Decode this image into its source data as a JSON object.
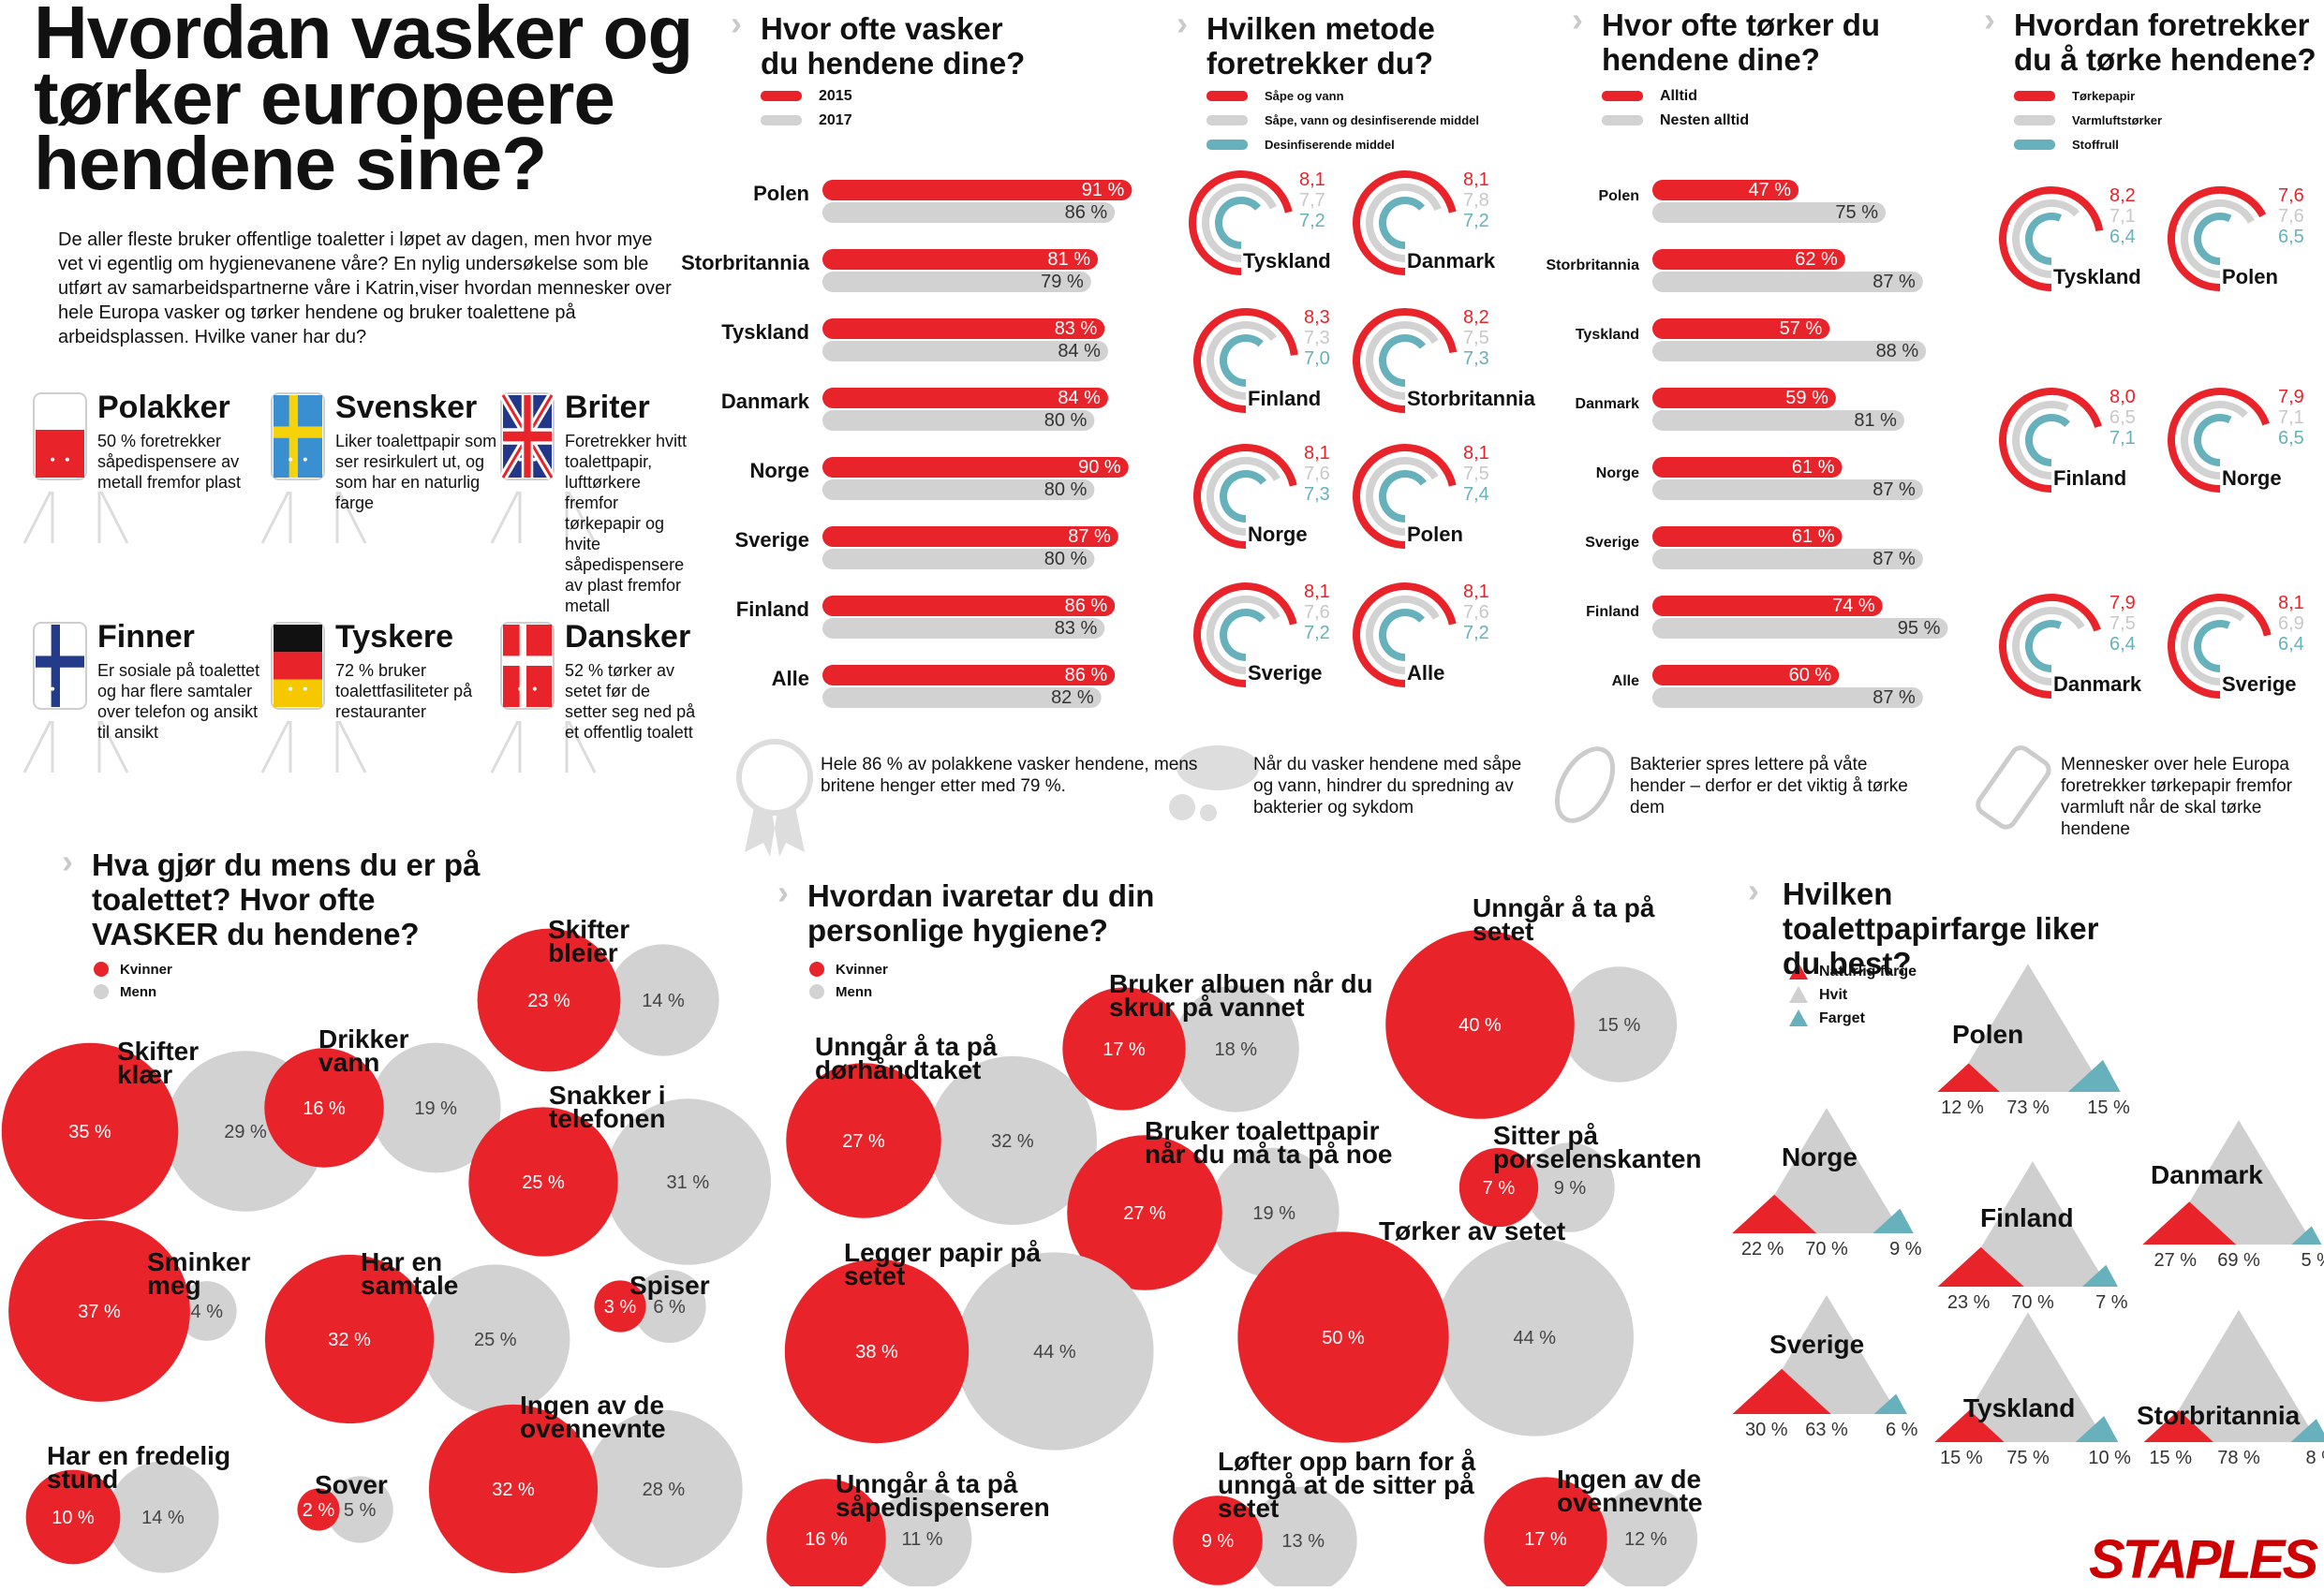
{
  "header": {
    "title": "Hvordan vasker og tørker europeere hendene sine?",
    "intro": "De aller fleste bruker offentlige toaletter i løpet av dagen, men hvor mye vet vi egentlig om hygienevanene våre? En nylig undersøkelse som ble utført av samarbeidspartnerne våre i Katrin,viser hvordan mennesker over hele Europa vasker og tørker hendene og bruker toalettene på arbeidsplassen. Hvilke vaner har du?"
  },
  "nationalities": [
    {
      "name": "Polakker",
      "desc": "50 % foretrekker såpedispensere av metall fremfor plast",
      "flag": "poland"
    },
    {
      "name": "Svensker",
      "desc": "Liker toalettpapir som ser resirkulert ut, og som har en naturlig farge",
      "flag": "sweden"
    },
    {
      "name": "Briter",
      "desc": "Foretrekker hvitt toalettpapir, lufttørkere fremfor tørkepapir og hvite såpedispensere av plast fremfor metall",
      "flag": "uk"
    },
    {
      "name": "Finner",
      "desc": "Er sosiale på toalettet og har flere samtaler over telefon og ansikt til ansikt",
      "flag": "finland"
    },
    {
      "name": "Tyskere",
      "desc": "72 % bruker toalettfasiliteter på restauranter",
      "flag": "germany"
    },
    {
      "name": "Dansker",
      "desc": "52 % tørker av setet før de setter seg ned på et offentlig toalett",
      "flag": "denmark"
    }
  ],
  "colors": {
    "red": "#e8232a",
    "grey": "#d2d2d2",
    "teal": "#67b1bd",
    "light_grey_text": "#c8c8c8"
  },
  "statements": [
    "Hele 86 % av polakkene vasker hendene, mens britene henger etter med 79 %.",
    "Når du vasker hendene med såpe og vann, hindrer du spredning av bakterier og sykdom",
    "Bakterier spres lettere på våte hender – derfor er det viktig å tørke dem",
    "Mennesker over hele Europa foretrekker tørkepapir fremfor varmluft når de skal tørke hendene"
  ],
  "brand": "STAPLES",
  "chart_data": [
    {
      "type": "bar",
      "title": "Hvor ofte vasker du hendene dine?",
      "categories": [
        "Polen",
        "Storbritannia",
        "Tyskland",
        "Danmark",
        "Norge",
        "Sverige",
        "Finland",
        "Alle"
      ],
      "series": [
        {
          "name": "2015",
          "values": [
            91,
            81,
            83,
            84,
            90,
            87,
            86,
            86
          ]
        },
        {
          "name": "2017",
          "values": [
            86,
            79,
            84,
            80,
            80,
            80,
            83,
            82
          ]
        }
      ],
      "unit": "%"
    },
    {
      "type": "radial",
      "title": "Hvilken metode foretrekker du?",
      "legend": [
        "Såpe og vann",
        "Såpe, vann og desinfiserende middel",
        "Desinfiserende middel"
      ],
      "countries": [
        {
          "name": "Tyskland",
          "values": [
            "8,1",
            "7,7",
            "7,2"
          ]
        },
        {
          "name": "Danmark",
          "values": [
            "8,1",
            "7,8",
            "7,2"
          ]
        },
        {
          "name": "Finland",
          "values": [
            "8,3",
            "7,3",
            "7,0"
          ]
        },
        {
          "name": "Storbritannia",
          "values": [
            "8,2",
            "7,5",
            "7,3"
          ]
        },
        {
          "name": "Norge",
          "values": [
            "8,1",
            "7,6",
            "7,3"
          ]
        },
        {
          "name": "Polen",
          "values": [
            "8,1",
            "7,5",
            "7,4"
          ]
        },
        {
          "name": "Sverige",
          "values": [
            "8,1",
            "7,6",
            "7,2"
          ]
        },
        {
          "name": "Alle",
          "values": [
            "8,1",
            "7,6",
            "7,2"
          ]
        }
      ]
    },
    {
      "type": "bar",
      "title": "Hvor ofte tørker du hendene dine?",
      "categories": [
        "Polen",
        "Storbritannia",
        "Tyskland",
        "Danmark",
        "Norge",
        "Sverige",
        "Finland",
        "Alle"
      ],
      "series": [
        {
          "name": "Alltid",
          "values": [
            47,
            62,
            57,
            59,
            61,
            61,
            74,
            60
          ]
        },
        {
          "name": "Nesten alltid",
          "values": [
            75,
            87,
            88,
            81,
            87,
            87,
            95,
            87
          ]
        }
      ],
      "unit": "%"
    },
    {
      "type": "radial",
      "title": "Hvordan foretrekker du å tørke hendene?",
      "legend": [
        "Tørkepapir",
        "Varmluftstørker",
        "Stoffrull"
      ],
      "countries": [
        {
          "name": "Tyskland",
          "values": [
            "8,2",
            "7,1",
            "6,4"
          ]
        },
        {
          "name": "Polen",
          "values": [
            "7,6",
            "7,6",
            "6,5"
          ]
        },
        {
          "name": "Finland",
          "values": [
            "8,0",
            "6,5",
            "7,1"
          ]
        },
        {
          "name": "Norge",
          "values": [
            "7,9",
            "7,1",
            "6,5"
          ]
        },
        {
          "name": "Danmark",
          "values": [
            "7,9",
            "7,5",
            "6,4"
          ]
        },
        {
          "name": "Sverige",
          "values": [
            "8,1",
            "6,9",
            "6,4"
          ]
        }
      ]
    },
    {
      "type": "bubble",
      "title": "Hva gjør du mens du er på toalettet? Hvor ofte VASKER du hendene?",
      "legend": [
        "Kvinner",
        "Menn"
      ],
      "items": [
        {
          "label": "Skifter klær",
          "women": 35,
          "men": 29
        },
        {
          "label": "Drikker vann",
          "women": 16,
          "men": 19
        },
        {
          "label": "Skifter bleier",
          "women": 23,
          "men": 14
        },
        {
          "label": "Snakker i telefonen",
          "women": 25,
          "men": 31
        },
        {
          "label": "Sminker meg",
          "women": 37,
          "men": 4
        },
        {
          "label": "Har en samtale",
          "women": 32,
          "men": 25
        },
        {
          "label": "Spiser",
          "women": 3,
          "men": 6
        },
        {
          "label": "Har en fredelig stund",
          "women": 10,
          "men": 14
        },
        {
          "label": "Sover",
          "women": 2,
          "men": 5
        },
        {
          "label": "Ingen av de ovennevnte",
          "women": 32,
          "men": 28
        }
      ]
    },
    {
      "type": "bubble",
      "title": "Hvordan ivaretar du din personlige hygiene?",
      "legend": [
        "Kvinner",
        "Menn"
      ],
      "items": [
        {
          "label": "Unngår å ta på dørhåndtaket",
          "women": 27,
          "men": 32
        },
        {
          "label": "Bruker albuen når du skrur på vannet",
          "women": 17,
          "men": 18
        },
        {
          "label": "Unngår å ta på setet",
          "women": 40,
          "men": 15
        },
        {
          "label": "Bruker toalettpapir når du må ta på noe",
          "women": 27,
          "men": 19
        },
        {
          "label": "Sitter på porselenskanten",
          "women": 7,
          "men": 9
        },
        {
          "label": "Legger papir på setet",
          "women": 38,
          "men": 44
        },
        {
          "label": "Tørker av setet",
          "women": 50,
          "men": 44
        },
        {
          "label": "Unngår å ta på såpedispenseren",
          "women": 16,
          "men": 11
        },
        {
          "label": "Løfter opp barn for å unngå at de sitter på setet",
          "women": 9,
          "men": 13
        },
        {
          "label": "Ingen av de ovennevnte",
          "women": 17,
          "men": 12
        }
      ]
    },
    {
      "type": "triangle",
      "title": "Hvilken toalettpapirfarge liker du best?",
      "legend": [
        "Naturlig farge",
        "Hvit",
        "Farget"
      ],
      "countries": [
        {
          "name": "Polen",
          "values": [
            12,
            73,
            15
          ]
        },
        {
          "name": "Norge",
          "values": [
            22,
            70,
            9
          ]
        },
        {
          "name": "Danmark",
          "values": [
            27,
            69,
            5
          ]
        },
        {
          "name": "Finland",
          "values": [
            23,
            70,
            7
          ]
        },
        {
          "name": "Sverige",
          "values": [
            30,
            63,
            6
          ]
        },
        {
          "name": "Tyskland",
          "values": [
            15,
            75,
            10
          ]
        },
        {
          "name": "Storbritannia",
          "values": [
            15,
            78,
            8
          ]
        }
      ]
    }
  ]
}
